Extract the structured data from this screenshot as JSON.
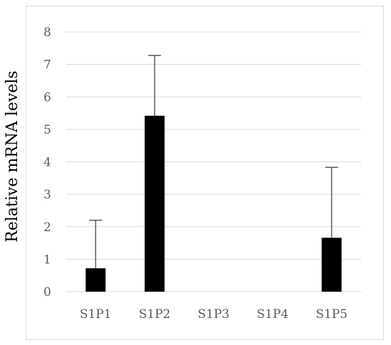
{
  "chart_data": {
    "type": "bar",
    "title": "",
    "xlabel": "",
    "ylabel": "Relative mRNA levels",
    "categories": [
      "S1P1",
      "S1P2",
      "S1P3",
      "S1P4",
      "S1P5"
    ],
    "values": [
      0.72,
      5.42,
      0,
      0,
      1.66
    ],
    "error_upper": [
      1.48,
      1.86,
      0,
      0,
      2.17
    ],
    "ylim": [
      0,
      8
    ],
    "yticks": [
      0,
      1,
      2,
      3,
      4,
      5,
      6,
      7,
      8
    ],
    "grid": true,
    "legend": "none",
    "bar_color": "#000000",
    "error_color": "#595959",
    "grid_color": "#d9d9d9"
  }
}
